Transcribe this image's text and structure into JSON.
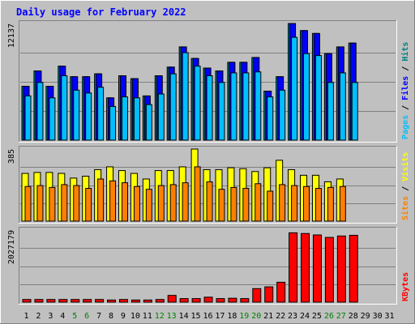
{
  "chart_data": {
    "type": "bar",
    "title": "Daily usage for February 2022",
    "categories": [
      "1",
      "2",
      "3",
      "4",
      "5",
      "6",
      "7",
      "8",
      "9",
      "10",
      "11",
      "12",
      "13",
      "14",
      "15",
      "16",
      "17",
      "18",
      "19",
      "20",
      "21",
      "22",
      "23",
      "24",
      "25",
      "26",
      "27",
      "28",
      "29",
      "30",
      "31"
    ],
    "weekend_days": [
      "5",
      "6",
      "12",
      "13",
      "19",
      "20",
      "26",
      "27"
    ],
    "panels": [
      {
        "id": "hits",
        "ymax_label": "12137",
        "ymax": 12137,
        "right_label": {
          "parts": [
            {
              "text": "Pages",
              "color": "#00bfff"
            },
            {
              "text": " / ",
              "color": "#000000"
            },
            {
              "text": "Files",
              "color": "#0000ff"
            },
            {
              "text": " / ",
              "color": "#000000"
            },
            {
              "text": "Hits",
              "color": "#008080"
            }
          ]
        },
        "series": [
          {
            "name": "Hits",
            "color": "#008080",
            "values": [
              5600,
              7200,
              5600,
              7700,
              6600,
              6600,
              6900,
              4400,
              6700,
              6400,
              4600,
              6700,
              7600,
              9700,
              8500,
              7500,
              7200,
              8100,
              8100,
              8600,
              5100,
              6600,
              12137,
              11400,
              11100,
              9000,
              9700,
              10100,
              null,
              null,
              null
            ]
          },
          {
            "name": "Files",
            "color": "#0000ff",
            "values": [
              5600,
              7200,
              5600,
              7700,
              6600,
              6600,
              6900,
              4400,
              6700,
              6400,
              4600,
              6700,
              7600,
              9700,
              8500,
              7500,
              7200,
              8100,
              8100,
              8600,
              5100,
              6600,
              12137,
              11400,
              11100,
              9000,
              9700,
              10100,
              null,
              null,
              null
            ]
          },
          {
            "name": "Pages",
            "color": "#00bfff",
            "values": [
              4600,
              6000,
              4400,
              6700,
              5200,
              4900,
              5500,
              3500,
              4500,
              4400,
              3700,
              4800,
              6900,
              9100,
              7700,
              6700,
              6000,
              7000,
              7000,
              7100,
              4500,
              5200,
              10700,
              9000,
              8800,
              6000,
              7000,
              6000,
              null,
              null,
              null
            ]
          }
        ]
      },
      {
        "id": "visits",
        "ymax_label": "385",
        "ymax": 385,
        "right_label": {
          "parts": [
            {
              "text": "Sites",
              "color": "#ff8000"
            },
            {
              "text": " / ",
              "color": "#000000"
            },
            {
              "text": "Visits",
              "color": "#ffff00"
            }
          ]
        },
        "series": [
          {
            "name": "Visits",
            "color": "#ffff00",
            "values": [
              255,
              260,
              260,
              255,
              230,
              240,
              275,
              290,
              270,
              255,
              225,
              270,
              270,
              290,
              385,
              275,
              275,
              285,
              280,
              265,
              285,
              325,
              275,
              245,
              245,
              210,
              225,
              null,
              null,
              null,
              null
            ]
          },
          {
            "name": "Sites",
            "color": "#ff8000",
            "values": [
              185,
              190,
              180,
              195,
              190,
              175,
              225,
              215,
              205,
              185,
              170,
              190,
              195,
              205,
              290,
              210,
              170,
              180,
              175,
              200,
              160,
              195,
              190,
              185,
              175,
              180,
              185,
              null,
              null,
              null,
              null
            ]
          }
        ]
      },
      {
        "id": "kbytes",
        "ymax_label": "2027179",
        "ymax": 2027179,
        "right_label": {
          "parts": [
            {
              "text": "KBytes",
              "color": "#ff0000"
            }
          ]
        },
        "series": [
          {
            "name": "KBytes",
            "color": "#ff0000",
            "values": [
              75000,
              75000,
              75000,
              75000,
              75000,
              75000,
              75000,
              60000,
              75000,
              60000,
              60000,
              75000,
              190000,
              100000,
              100000,
              140000,
              100000,
              110000,
              100000,
              380000,
              430000,
              560000,
              1950000,
              1930000,
              1890000,
              1820000,
              1860000,
              1880000,
              null,
              null,
              null
            ]
          }
        ]
      }
    ]
  }
}
